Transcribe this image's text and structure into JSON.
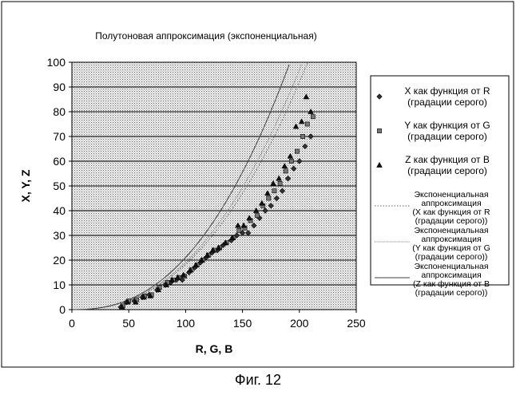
{
  "chart_data": {
    "type": "scatter",
    "title": "Полутоновая аппроксимация (экспоненциальная)",
    "xlabel": "R, G, B",
    "ylabel": "X, Y, Z",
    "xlim": [
      0,
      250
    ],
    "ylim": [
      0,
      100
    ],
    "x_ticks": [
      "0",
      "50",
      "100",
      "150",
      "200",
      "250"
    ],
    "y_ticks": [
      "0",
      "10",
      "20",
      "30",
      "40",
      "50",
      "60",
      "70",
      "80",
      "90",
      "100"
    ],
    "grid": true,
    "legend_position": "right",
    "series": [
      {
        "name": "X как функция от R (градации серого)",
        "name_lines": [
          "X как функция от R",
          "(градации серого)"
        ],
        "marker": "diamond",
        "points": [
          [
            43,
            1
          ],
          [
            48,
            3
          ],
          [
            55,
            3.5
          ],
          [
            62,
            5
          ],
          [
            68,
            6
          ],
          [
            75,
            8
          ],
          [
            82,
            10
          ],
          [
            87,
            11
          ],
          [
            92,
            12
          ],
          [
            97,
            12
          ],
          [
            103,
            15
          ],
          [
            108,
            17
          ],
          [
            113,
            19
          ],
          [
            118,
            21
          ],
          [
            123,
            23
          ],
          [
            128,
            24
          ],
          [
            133,
            26
          ],
          [
            140,
            28
          ],
          [
            145,
            30
          ],
          [
            150,
            31
          ],
          [
            155,
            31
          ],
          [
            160,
            34
          ],
          [
            165,
            37
          ],
          [
            170,
            40
          ],
          [
            175,
            42
          ],
          [
            180,
            45
          ],
          [
            185,
            48
          ],
          [
            190,
            53
          ],
          [
            195,
            57
          ],
          [
            200,
            60
          ],
          [
            205,
            66
          ],
          [
            210,
            70
          ]
        ]
      },
      {
        "name": "Y как функция от G (градации серого)",
        "name_lines": [
          "Y как функция от G",
          "(градации серого)"
        ],
        "marker": "square",
        "points": [
          [
            45,
            1.5
          ],
          [
            50,
            3.5
          ],
          [
            57,
            4
          ],
          [
            64,
            5.5
          ],
          [
            70,
            6
          ],
          [
            77,
            9
          ],
          [
            84,
            11
          ],
          [
            89,
            12
          ],
          [
            94,
            13
          ],
          [
            99,
            13.5
          ],
          [
            105,
            16
          ],
          [
            110,
            18
          ],
          [
            115,
            20
          ],
          [
            120,
            22
          ],
          [
            125,
            24
          ],
          [
            130,
            25
          ],
          [
            136,
            27
          ],
          [
            142,
            29
          ],
          [
            147,
            32
          ],
          [
            152,
            33
          ],
          [
            157,
            36
          ],
          [
            163,
            38
          ],
          [
            168,
            42
          ],
          [
            173,
            45
          ],
          [
            178,
            48
          ],
          [
            183,
            51
          ],
          [
            188,
            56
          ],
          [
            193,
            60
          ],
          [
            198,
            64
          ],
          [
            203,
            70
          ],
          [
            207,
            75
          ],
          [
            212,
            78
          ]
        ]
      },
      {
        "name": "Z как функция от B (градации серого)",
        "name_lines": [
          "Z как функция от B",
          "(градации серого)"
        ],
        "marker": "triangle",
        "points": [
          [
            44,
            1
          ],
          [
            49,
            3
          ],
          [
            56,
            3
          ],
          [
            63,
            5
          ],
          [
            69,
            5.5
          ],
          [
            76,
            8
          ],
          [
            83,
            10
          ],
          [
            88,
            12
          ],
          [
            93,
            13
          ],
          [
            98,
            14
          ],
          [
            104,
            16
          ],
          [
            109,
            18
          ],
          [
            114,
            20
          ],
          [
            119,
            22
          ],
          [
            124,
            24
          ],
          [
            129,
            25
          ],
          [
            135,
            27
          ],
          [
            141,
            29
          ],
          [
            146,
            34
          ],
          [
            151,
            34
          ],
          [
            156,
            37
          ],
          [
            162,
            40
          ],
          [
            167,
            43
          ],
          [
            172,
            47
          ],
          [
            177,
            51
          ],
          [
            182,
            53
          ],
          [
            187,
            58
          ],
          [
            192,
            62
          ],
          [
            197,
            74
          ],
          [
            202,
            76
          ],
          [
            206,
            86
          ],
          [
            210,
            80
          ]
        ]
      },
      {
        "name": "Экспоненциальная аппроксимация (X как функция от R (градации серого))",
        "name_lines": [
          "Экспоненциальная",
          "аппроксимация",
          "(X как функция от R",
          "(градации серого))"
        ],
        "marker": "none",
        "line_style": "dotted",
        "curve": {
          "a": 0.0004,
          "p": 2.33
        }
      },
      {
        "name": "Экспоненциальная аппроксимация (Y как функция от G (градации серого))",
        "name_lines": [
          "Экспоненциальная",
          "аппроксимация",
          "(Y как функция от G",
          "(градации серого))"
        ],
        "marker": "none",
        "line_style": "dotted-fine",
        "curve": {
          "a": 0.0004,
          "p": 2.34
        }
      },
      {
        "name": "Экспоненциальная аппроксимация (Z как функция от B (градации серого))",
        "name_lines": [
          "Экспоненциальная",
          "аппроксимация",
          "(Z как функция от B",
          "(градации серого))"
        ],
        "marker": "none",
        "line_style": "solid",
        "curve": {
          "a": 0.00035,
          "p": 2.39
        }
      }
    ]
  },
  "caption": "Фиг. 12"
}
